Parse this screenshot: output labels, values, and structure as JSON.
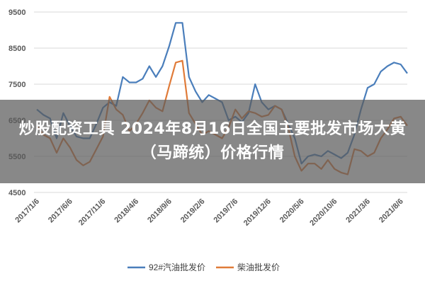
{
  "overlay": {
    "title": "炒股配资工具 2024年8月16日全国主要批发市场大黄（马蹄统）价格行情"
  },
  "chart_data": {
    "type": "line",
    "title": "",
    "xlabel": "",
    "ylabel": "",
    "ylim": [
      4500,
      9500
    ],
    "yticks": [
      4500,
      5500,
      6500,
      7500,
      8500,
      9500
    ],
    "x_tick_labels": [
      "2017/1/6",
      "2017/6/6",
      "2017/11/6",
      "2018/4/6",
      "2018/9/6",
      "2019/2/6",
      "2019/7/6",
      "2019/12/6",
      "2020/5/6",
      "2020/10/6",
      "2021/3/6",
      "2021/8/6"
    ],
    "grid": "horizontal",
    "legend_position": "bottom",
    "colors": {
      "series1": "#4a7ebb",
      "series2": "#e07b39",
      "grid": "#d9d9d9"
    },
    "x": [
      "2017/1/6",
      "2017/2/6",
      "2017/3/6",
      "2017/4/6",
      "2017/5/6",
      "2017/6/6",
      "2017/7/6",
      "2017/8/6",
      "2017/9/6",
      "2017/10/6",
      "2017/11/6",
      "2017/12/6",
      "2018/1/6",
      "2018/2/6",
      "2018/3/6",
      "2018/4/6",
      "2018/5/6",
      "2018/6/6",
      "2018/7/6",
      "2018/8/6",
      "2018/9/6",
      "2018/10/6",
      "2018/11/6",
      "2018/12/6",
      "2019/1/6",
      "2019/2/6",
      "2019/3/6",
      "2019/4/6",
      "2019/5/6",
      "2019/6/6",
      "2019/7/6",
      "2019/8/6",
      "2019/9/6",
      "2019/10/6",
      "2019/11/6",
      "2019/12/6",
      "2020/1/6",
      "2020/2/6",
      "2020/3/6",
      "2020/4/6",
      "2020/5/6",
      "2020/6/6",
      "2020/7/6",
      "2020/8/6",
      "2020/9/6",
      "2020/10/6",
      "2020/11/6",
      "2020/12/6",
      "2021/1/6",
      "2021/2/6",
      "2021/3/6",
      "2021/4/6",
      "2021/5/6",
      "2021/6/6",
      "2021/7/6",
      "2021/8/6",
      "2021/9/6"
    ],
    "series": [
      {
        "name": "92#汽油批发价",
        "values": [
          6800,
          6650,
          6550,
          6000,
          6700,
          6350,
          6050,
          6000,
          6000,
          6400,
          6850,
          7000,
          6900,
          7700,
          7550,
          7550,
          7650,
          8000,
          7700,
          8000,
          8550,
          9200,
          9200,
          7700,
          7300,
          7000,
          7200,
          7100,
          7000,
          6500,
          6600,
          6450,
          6700,
          7500,
          7000,
          6800,
          6900,
          6800,
          6400,
          6000,
          5300,
          5500,
          5550,
          5500,
          5650,
          5550,
          5450,
          5600,
          6100,
          6800,
          7400,
          7500,
          7850,
          8000,
          8100,
          8050,
          7800
        ]
      },
      {
        "name": "柴油批发价",
        "values": [
          6350,
          6100,
          6000,
          5600,
          6000,
          5750,
          5400,
          5250,
          5350,
          5700,
          6050,
          7150,
          6800,
          6650,
          6200,
          6400,
          6700,
          7050,
          6850,
          6750,
          7450,
          8100,
          8150,
          6700,
          6400,
          6100,
          6200,
          6100,
          6000,
          6300,
          6800,
          6550,
          6750,
          6700,
          6600,
          6650,
          6900,
          6800,
          6300,
          5500,
          5100,
          5300,
          5300,
          5150,
          5400,
          5150,
          5050,
          5000,
          5700,
          5650,
          5500,
          5600,
          6000,
          6250,
          6550,
          6600,
          6350
        ]
      }
    ]
  }
}
